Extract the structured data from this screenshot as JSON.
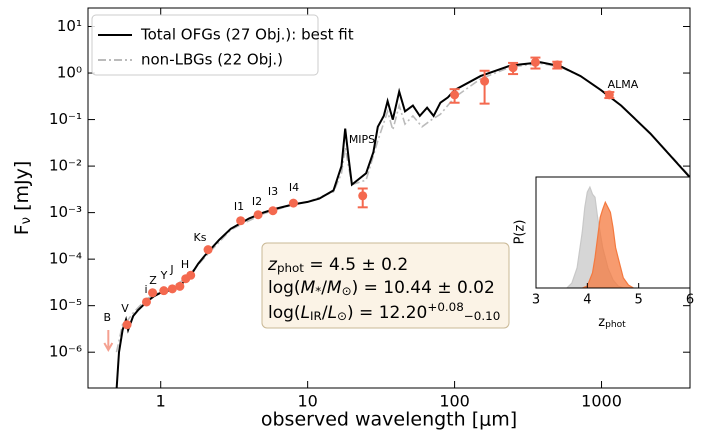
{
  "chart_data": {
    "type": "sed",
    "ylabel": [
      [
        "F",
        ""
      ],
      [
        "ν",
        "sub"
      ],
      [
        " [mJy]",
        ""
      ]
    ],
    "xlabel": "observed wavelength [μm]",
    "log_x": true,
    "log_y": true,
    "xlim": [
      0.32,
      4000
    ],
    "ylim": [
      1.7e-07,
      25
    ],
    "xticks": [
      1,
      10,
      100,
      1000
    ],
    "yticks": [
      {
        "value": 10,
        "label": "10¹"
      },
      {
        "value": 1,
        "label": "10⁰"
      },
      {
        "value": 0.1,
        "label": "10⁻¹"
      },
      {
        "value": 0.01,
        "label": "10⁻²"
      },
      {
        "value": 0.001,
        "label": "10⁻³"
      },
      {
        "value": 0.0001,
        "label": "10⁻⁴"
      },
      {
        "value": 1e-05,
        "label": "10⁻⁵"
      },
      {
        "value": 1e-06,
        "label": "10⁻⁶"
      }
    ],
    "legend": "upper left",
    "series": [
      {
        "name": "Total OFGs (27 Obj.): best fit",
        "color": "#000000",
        "style": "solid",
        "x": [
          0.5,
          0.52,
          0.55,
          0.58,
          0.6,
          0.65,
          0.7,
          0.8,
          0.9,
          1.0,
          1.2,
          1.4,
          1.6,
          1.8,
          2.0,
          2.5,
          3,
          4,
          5,
          6,
          8,
          10,
          12,
          15,
          17,
          18,
          19,
          20,
          25,
          28,
          30,
          33,
          35,
          38,
          42,
          46,
          52,
          58,
          65,
          72,
          80,
          90,
          100,
          150,
          240,
          385,
          525,
          720,
          990,
          1360,
          2150,
          4000
        ],
        "values": [
          1.5e-07,
          1e-06,
          3e-06,
          5e-06,
          3e-06,
          6e-06,
          8e-06,
          1.2e-05,
          1.6e-05,
          1.9e-05,
          2.2e-05,
          3e-05,
          4.5e-05,
          8e-05,
          0.00012,
          0.00026,
          0.00045,
          0.00075,
          0.001,
          0.0012,
          0.0015,
          0.0017,
          0.002,
          0.003,
          0.01,
          0.064,
          0.015,
          0.004,
          0.007,
          0.02,
          0.07,
          0.12,
          0.25,
          0.1,
          0.4,
          0.15,
          0.2,
          0.12,
          0.18,
          0.12,
          0.23,
          0.3,
          0.43,
          0.86,
          1.45,
          1.7,
          1.4,
          0.86,
          0.43,
          0.2,
          0.05,
          0.0057
        ]
      },
      {
        "name": "non-LBGs (22 Obj.)",
        "color": "#bbbbbb",
        "style": "dashdot",
        "x": [
          0.5,
          0.55,
          0.6,
          0.65,
          0.7,
          0.8,
          1.0,
          1.2,
          1.5,
          2,
          3,
          5,
          8,
          10,
          15,
          17,
          18,
          20,
          25,
          30,
          35,
          38,
          42,
          46,
          52,
          60,
          70,
          80,
          100,
          150,
          240,
          385,
          525,
          720,
          990,
          1360,
          2150,
          4000
        ],
        "values": [
          1e-06,
          4e-06,
          5e-06,
          7e-06,
          9e-06,
          1.4e-05,
          2e-05,
          2.5e-05,
          4e-05,
          0.00011,
          0.00043,
          0.00095,
          0.0015,
          0.0017,
          0.0028,
          0.007,
          0.025,
          0.004,
          0.005,
          0.035,
          0.15,
          0.06,
          0.2,
          0.08,
          0.12,
          0.07,
          0.1,
          0.13,
          0.3,
          0.75,
          1.35,
          1.6,
          1.35,
          0.85,
          0.43,
          0.2,
          0.05,
          0.006
        ]
      }
    ],
    "points": {
      "color": "#f4694f",
      "x": [
        0.59,
        0.8,
        0.88,
        1.05,
        1.2,
        1.35,
        1.48,
        1.6,
        2.1,
        3.5,
        4.6,
        5.8,
        8.0,
        23.7,
        100,
        160,
        250,
        355,
        500,
        1130
      ],
      "values": [
        3.9e-06,
        1.2e-05,
        1.9e-05,
        2.1e-05,
        2.3e-05,
        2.6e-05,
        3.8e-05,
        4.5e-05,
        0.00016,
        0.00067,
        0.0009,
        0.0011,
        0.0016,
        0.0023,
        0.34,
        0.67,
        1.3,
        1.7,
        1.5,
        0.34
      ],
      "errors": [
        null,
        null,
        null,
        null,
        null,
        null,
        null,
        null,
        null,
        null,
        null,
        null,
        null,
        0.001,
        0.11,
        0.45,
        0.35,
        0.45,
        0.25,
        0.05
      ],
      "labels": [
        "V",
        "i",
        "Z",
        "Y",
        "J",
        null,
        "H",
        null,
        "Ks",
        "I1",
        "I2",
        "I3",
        "I4",
        "MIPS",
        null,
        null,
        null,
        null,
        null,
        "ALMA"
      ]
    },
    "upper_limits": {
      "color": "#f4a090",
      "x": [
        0.44
      ],
      "values": [
        3e-06
      ],
      "labels": [
        "B"
      ]
    },
    "annotations": [
      [
        [
          "z",
          "it"
        ],
        [
          "phot",
          "sub"
        ],
        [
          " = 4.5 ± 0.2",
          ""
        ]
      ],
      [
        [
          "log(",
          ""
        ],
        [
          "M",
          "it"
        ],
        [
          "*",
          "sub"
        ],
        [
          "/",
          ""
        ],
        [
          "M",
          "it"
        ],
        [
          "⊙",
          "sub"
        ],
        [
          ") = 10.44 ± 0.02",
          ""
        ]
      ],
      [
        [
          "log(",
          ""
        ],
        [
          "L",
          "it"
        ],
        [
          "IR",
          "sub"
        ],
        [
          "/",
          ""
        ],
        [
          "L",
          "it"
        ],
        [
          "⊙",
          "sub"
        ],
        [
          ") = 12.20",
          ""
        ],
        [
          "+0.08",
          "sup"
        ],
        [
          "−0.10",
          "sub"
        ]
      ]
    ],
    "inset": {
      "type": "area",
      "ylabel": "P(z)",
      "xlabel": [
        [
          "z",
          ""
        ],
        [
          "phot",
          "sub"
        ]
      ],
      "xlim": [
        3,
        6
      ],
      "ylim": [
        0,
        1.1
      ],
      "xticks": [
        3,
        4,
        5,
        6
      ],
      "series": [
        {
          "color": "#c8c8c8",
          "x": [
            3.6,
            3.7,
            3.8,
            3.9,
            3.95,
            4.0,
            4.05,
            4.1,
            4.15,
            4.2,
            4.3,
            4.4,
            4.5,
            4.6,
            4.7
          ],
          "values": [
            0,
            0.05,
            0.2,
            0.55,
            0.8,
            0.95,
            1.0,
            0.93,
            0.9,
            0.7,
            0.4,
            0.2,
            0.08,
            0.02,
            0
          ]
        },
        {
          "color": "#f4793f",
          "x": [
            3.9,
            4.0,
            4.1,
            4.15,
            4.2,
            4.25,
            4.3,
            4.35,
            4.4,
            4.45,
            4.5,
            4.55,
            4.6,
            4.7,
            4.8,
            4.9
          ],
          "values": [
            0,
            0.02,
            0.15,
            0.3,
            0.5,
            0.7,
            0.78,
            0.85,
            0.8,
            0.75,
            0.6,
            0.4,
            0.3,
            0.1,
            0.03,
            0
          ]
        }
      ]
    }
  }
}
